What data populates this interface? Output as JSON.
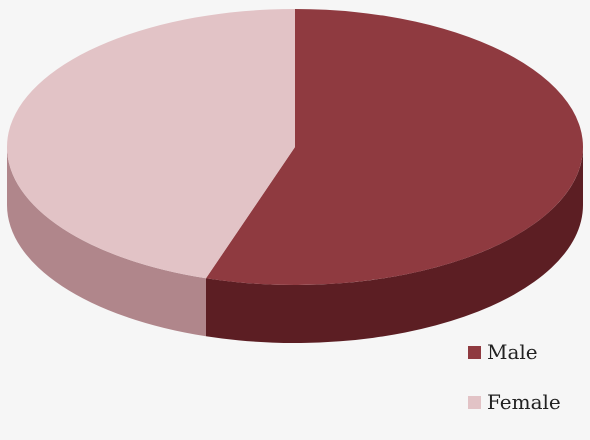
{
  "chart_data": {
    "type": "pie",
    "title": "",
    "style": "3d",
    "slices": [
      {
        "label": "Male",
        "value": 55,
        "color": "#8f3a40",
        "side_color": "#5c1e23"
      },
      {
        "label": "Female",
        "value": 45,
        "color": "#e2c3c6",
        "side_color": "#b0868b"
      }
    ],
    "legend_placement": "bottom-right"
  }
}
